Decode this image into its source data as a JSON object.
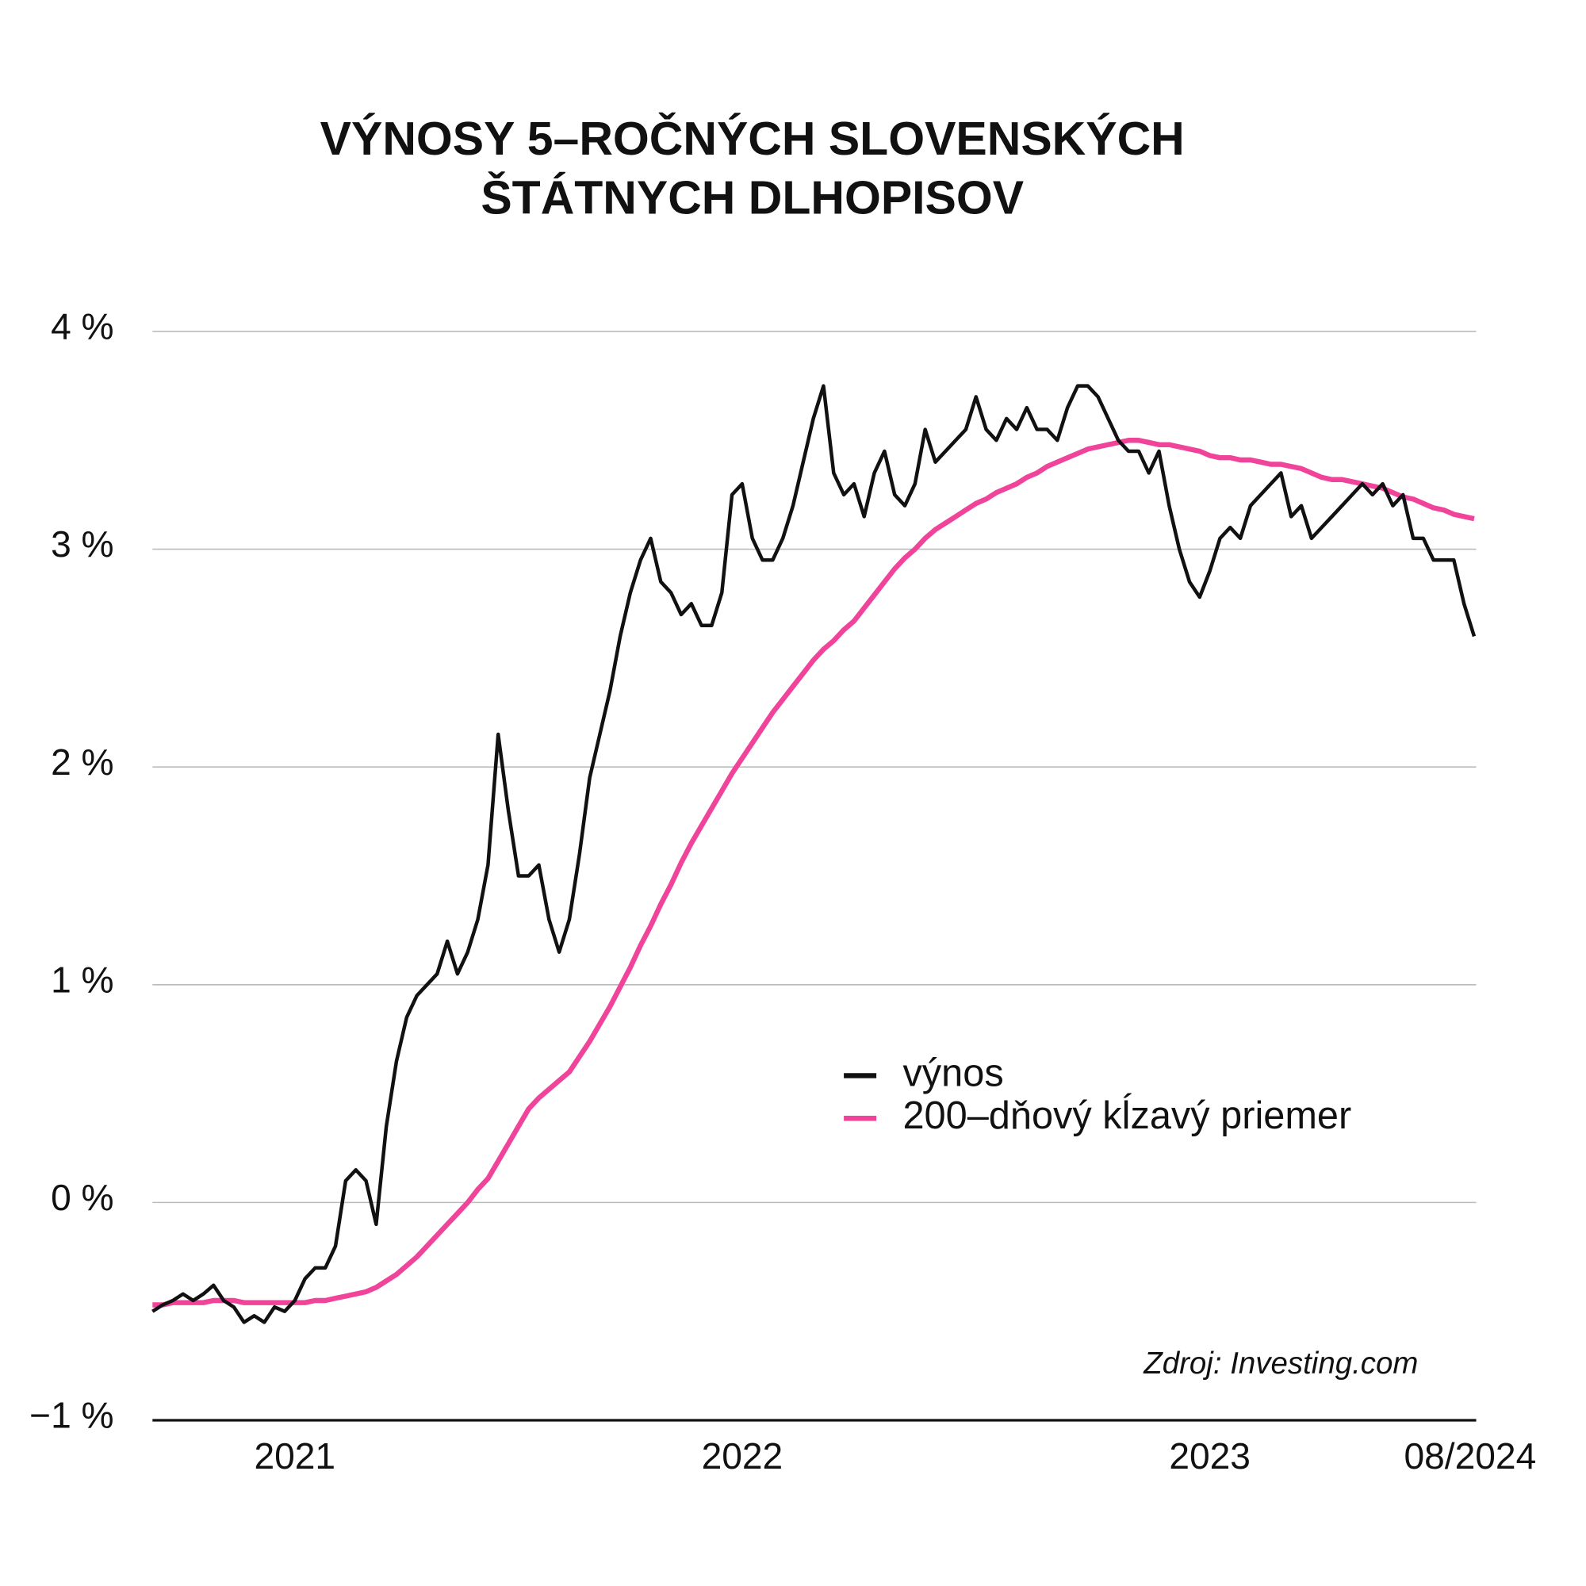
{
  "chart_data": {
    "type": "line",
    "title": [
      "VÝNOSY 5–ROČNÝCH SLOVENSKÝCH",
      "ŠTÁTNYCH DLHOPISOV"
    ],
    "annotation": "Zdroj: Investing.com",
    "categories": [
      null,
      null,
      null,
      null,
      null,
      null,
      null,
      null,
      null,
      null,
      null,
      null,
      null,
      null,
      "2021",
      null,
      null,
      null,
      null,
      null,
      null,
      null,
      null,
      null,
      null,
      null,
      null,
      null,
      null,
      null,
      null,
      null,
      null,
      null,
      null,
      null,
      null,
      null,
      null,
      null,
      null,
      null,
      null,
      null,
      null,
      null,
      null,
      null,
      null,
      null,
      null,
      null,
      null,
      null,
      null,
      null,
      null,
      null,
      "2022",
      null,
      null,
      null,
      null,
      null,
      null,
      null,
      null,
      null,
      null,
      null,
      null,
      null,
      null,
      null,
      null,
      null,
      null,
      null,
      null,
      null,
      null,
      null,
      null,
      null,
      null,
      null,
      null,
      null,
      null,
      null,
      null,
      null,
      null,
      null,
      null,
      null,
      null,
      null,
      null,
      null,
      null,
      null,
      null,
      null,
      "2023",
      null,
      null,
      null,
      null,
      null,
      null,
      null,
      null,
      null,
      null,
      null,
      null,
      null,
      null,
      null,
      null,
      null,
      null,
      null,
      null,
      null,
      null,
      null,
      null,
      null,
      "08/2024"
    ],
    "series": [
      {
        "name": "výnos",
        "color": "#111111",
        "values": [
          -0.5,
          -0.47,
          -0.45,
          -0.42,
          -0.45,
          -0.42,
          -0.38,
          -0.45,
          -0.48,
          -0.55,
          -0.52,
          -0.55,
          -0.48,
          -0.5,
          -0.45,
          -0.35,
          -0.3,
          -0.3,
          -0.2,
          0.1,
          0.15,
          0.1,
          -0.1,
          0.35,
          0.65,
          0.85,
          0.95,
          1.0,
          1.05,
          1.2,
          1.05,
          1.15,
          1.3,
          1.55,
          2.15,
          1.8,
          1.5,
          1.5,
          1.55,
          1.3,
          1.15,
          1.3,
          1.6,
          1.95,
          2.15,
          2.35,
          2.6,
          2.8,
          2.95,
          3.05,
          2.85,
          2.8,
          2.7,
          2.75,
          2.65,
          2.65,
          2.8,
          3.25,
          3.3,
          3.05,
          2.95,
          2.95,
          3.05,
          3.2,
          3.4,
          3.6,
          3.75,
          3.35,
          3.25,
          3.3,
          3.15,
          3.35,
          3.45,
          3.25,
          3.2,
          3.3,
          3.55,
          3.4,
          3.45,
          3.5,
          3.55,
          3.7,
          3.55,
          3.5,
          3.6,
          3.55,
          3.65,
          3.55,
          3.55,
          3.5,
          3.65,
          3.75,
          3.75,
          3.7,
          3.6,
          3.5,
          3.45,
          3.45,
          3.35,
          3.45,
          3.2,
          3.0,
          2.85,
          2.78,
          2.9,
          3.05,
          3.1,
          3.05,
          3.2,
          3.25,
          3.3,
          3.35,
          3.15,
          3.2,
          3.05,
          3.1,
          3.15,
          3.2,
          3.25,
          3.3,
          3.25,
          3.3,
          3.2,
          3.25,
          3.05,
          3.05,
          2.95,
          2.95,
          2.95,
          2.75,
          2.6
        ]
      },
      {
        "name": "200–dňový kĺzavý priemer",
        "color": "#f0449b",
        "values": [
          -0.47,
          -0.47,
          -0.46,
          -0.46,
          -0.46,
          -0.46,
          -0.45,
          -0.45,
          -0.45,
          -0.46,
          -0.46,
          -0.46,
          -0.46,
          -0.46,
          -0.46,
          -0.46,
          -0.45,
          -0.45,
          -0.44,
          -0.43,
          -0.42,
          -0.41,
          -0.39,
          -0.36,
          -0.33,
          -0.29,
          -0.25,
          -0.2,
          -0.15,
          -0.1,
          -0.05,
          0,
          0.06,
          0.11,
          0.19,
          0.27,
          0.35,
          0.43,
          0.48,
          0.52,
          0.56,
          0.6,
          0.67,
          0.74,
          0.82,
          0.9,
          0.99,
          1.08,
          1.18,
          1.27,
          1.37,
          1.46,
          1.56,
          1.65,
          1.73,
          1.81,
          1.89,
          1.97,
          2.04,
          2.11,
          2.18,
          2.25,
          2.31,
          2.37,
          2.43,
          2.49,
          2.54,
          2.58,
          2.63,
          2.67,
          2.73,
          2.79,
          2.85,
          2.91,
          2.96,
          3.0,
          3.05,
          3.09,
          3.12,
          3.15,
          3.18,
          3.21,
          3.23,
          3.26,
          3.28,
          3.3,
          3.33,
          3.35,
          3.38,
          3.4,
          3.42,
          3.44,
          3.46,
          3.47,
          3.48,
          3.49,
          3.5,
          3.5,
          3.49,
          3.48,
          3.48,
          3.47,
          3.46,
          3.45,
          3.43,
          3.42,
          3.42,
          3.41,
          3.41,
          3.4,
          3.39,
          3.39,
          3.38,
          3.37,
          3.35,
          3.33,
          3.32,
          3.32,
          3.31,
          3.3,
          3.29,
          3.28,
          3.26,
          3.24,
          3.23,
          3.21,
          3.19,
          3.18,
          3.16,
          3.15,
          3.14
        ]
      }
    ],
    "ylim": [
      -1,
      4
    ],
    "yticks": [
      {
        "value": -1,
        "label": "−1 %"
      },
      {
        "value": 0,
        "label": "0 %"
      },
      {
        "value": 1,
        "label": "1 %"
      },
      {
        "value": 2,
        "label": "2 %"
      },
      {
        "value": 3,
        "label": "3 %"
      },
      {
        "value": 4,
        "label": "4 %"
      }
    ],
    "grid": true,
    "legend": "right"
  }
}
